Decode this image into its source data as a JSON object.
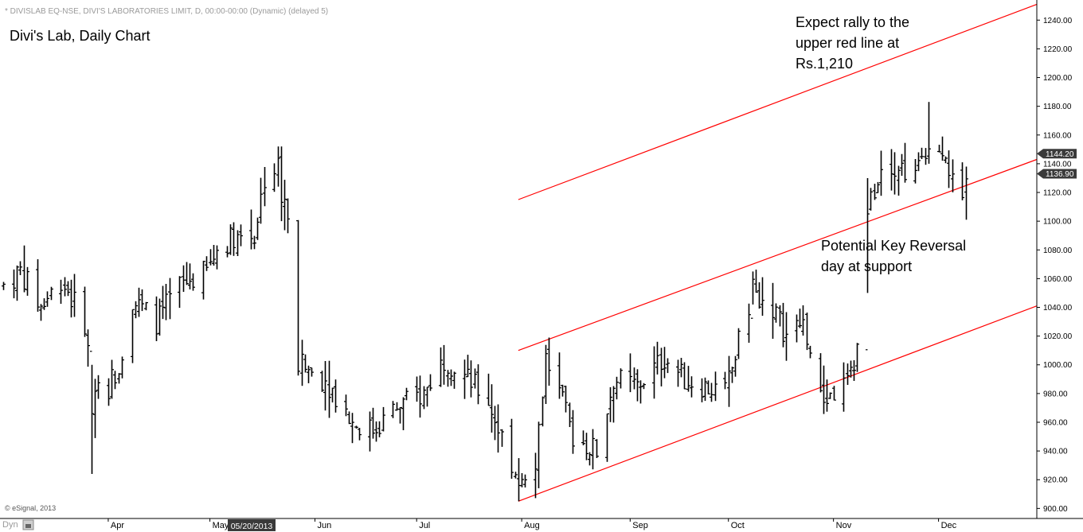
{
  "header": {
    "symbol_line": "* DIVISLAB EQ-NSE, DIVI'S LABORATORIES LIMIT, D, 00:00-00:00 (Dynamic) (delayed 5)",
    "chart_title": "Divi's Lab, Daily Chart"
  },
  "footer": {
    "copyright": "© eSignal, 2013",
    "dyn_label": "Dyn",
    "cursor_date": "05/20/2013"
  },
  "annotations": {
    "rally_lines": [
      "Expect rally to the",
      "upper red line at",
      "Rs.1,210"
    ],
    "reversal_lines": [
      "Potential Key Reversal",
      "day at support"
    ]
  },
  "colors": {
    "price_bars": "#000000",
    "trend_lines": "#ff0000",
    "axis_line": "#000000",
    "badge_bg": "#3a3a3a",
    "badge_text": "#ffffff"
  },
  "chart_data": {
    "type": "ohlc",
    "x_tick_labels": [
      {
        "label": "Apr",
        "date": "2013-04-01"
      },
      {
        "label": "May",
        "date": "2013-05-01"
      },
      {
        "label": "Jun",
        "date": "2013-06-01"
      },
      {
        "label": "Jul",
        "date": "2013-07-01"
      },
      {
        "label": "Aug",
        "date": "2013-08-01"
      },
      {
        "label": "Sep",
        "date": "2013-09-02"
      },
      {
        "label": "Oct",
        "date": "2013-10-01"
      },
      {
        "label": "Nov",
        "date": "2013-11-01"
      },
      {
        "label": "Dec",
        "date": "2013-12-02"
      }
    ],
    "y_ticks": [
      900,
      920,
      940,
      960,
      980,
      1000,
      1020,
      1040,
      1060,
      1080,
      1100,
      1120,
      1140,
      1160,
      1180,
      1200,
      1220,
      1240
    ],
    "y_tick_labels": [
      "900.00",
      "920.00",
      "940.00",
      "960.00",
      "980.00",
      "1000.00",
      "1020.00",
      "1040.00",
      "1060.00",
      "1080.00",
      "1100.00",
      "1120.00",
      "1140.00",
      "1160.00",
      "1180.00",
      "1200.00",
      "1220.00",
      "1240.00"
    ],
    "ylim": [
      893,
      1254
    ],
    "xlim": [
      "2013-03-01",
      "2013-12-31"
    ],
    "price_labels": [
      {
        "label": "1144.20",
        "value": 1144.2
      },
      {
        "label": "1136.90",
        "value": 1136.9
      }
    ],
    "trend_lines": [
      {
        "name": "upper",
        "from": {
          "date": "2013-07-31",
          "price": 1115
        },
        "to": {
          "date": "2013-12-31",
          "price": 1251
        }
      },
      {
        "name": "middle",
        "from": {
          "date": "2013-07-31",
          "price": 1010
        },
        "to": {
          "date": "2013-12-31",
          "price": 1143
        }
      },
      {
        "name": "lower",
        "from": {
          "date": "2013-07-31",
          "price": 905
        },
        "to": {
          "date": "2013-12-31",
          "price": 1041
        }
      }
    ],
    "anchors": [
      {
        "date": "2013-03-01",
        "price": 1055
      },
      {
        "date": "2013-03-06",
        "price": 1065
      },
      {
        "date": "2013-03-12",
        "price": 1040
      },
      {
        "date": "2013-03-18",
        "price": 1060
      },
      {
        "date": "2013-03-25",
        "price": 1030
      },
      {
        "date": "2013-03-27",
        "price": 990
      },
      {
        "date": "2013-04-01",
        "price": 985
      },
      {
        "date": "2013-04-04",
        "price": 1000
      },
      {
        "date": "2013-04-08",
        "price": 1045
      },
      {
        "date": "2013-04-15",
        "price": 1030
      },
      {
        "date": "2013-04-22",
        "price": 1055
      },
      {
        "date": "2013-04-30",
        "price": 1065
      },
      {
        "date": "2013-05-03",
        "price": 1080
      },
      {
        "date": "2013-05-08",
        "price": 1090
      },
      {
        "date": "2013-05-14",
        "price": 1090
      },
      {
        "date": "2013-05-17",
        "price": 1130
      },
      {
        "date": "2013-05-22",
        "price": 1140
      },
      {
        "date": "2013-05-24",
        "price": 1095
      },
      {
        "date": "2013-05-27",
        "price": 1000
      },
      {
        "date": "2013-06-04",
        "price": 990
      },
      {
        "date": "2013-06-12",
        "price": 960
      },
      {
        "date": "2013-06-18",
        "price": 955
      },
      {
        "date": "2013-06-25",
        "price": 970
      },
      {
        "date": "2013-07-03",
        "price": 980
      },
      {
        "date": "2013-07-09",
        "price": 1005
      },
      {
        "date": "2013-07-16",
        "price": 990
      },
      {
        "date": "2013-07-22",
        "price": 975
      },
      {
        "date": "2013-07-26",
        "price": 950
      },
      {
        "date": "2013-07-31",
        "price": 920
      },
      {
        "date": "2013-08-05",
        "price": 935
      },
      {
        "date": "2013-08-08",
        "price": 1005
      },
      {
        "date": "2013-08-12",
        "price": 980
      },
      {
        "date": "2013-08-16",
        "price": 950
      },
      {
        "date": "2013-08-23",
        "price": 940
      },
      {
        "date": "2013-08-28",
        "price": 990
      },
      {
        "date": "2013-09-04",
        "price": 985
      },
      {
        "date": "2013-09-12",
        "price": 1005
      },
      {
        "date": "2013-09-18",
        "price": 990
      },
      {
        "date": "2013-09-24",
        "price": 985
      },
      {
        "date": "2013-09-30",
        "price": 980
      },
      {
        "date": "2013-10-04",
        "price": 1015
      },
      {
        "date": "2013-10-08",
        "price": 1050
      },
      {
        "date": "2013-10-14",
        "price": 1040
      },
      {
        "date": "2013-10-18",
        "price": 1020
      },
      {
        "date": "2013-10-23",
        "price": 1030
      },
      {
        "date": "2013-10-28",
        "price": 975
      },
      {
        "date": "2013-11-01",
        "price": 980
      },
      {
        "date": "2013-11-06",
        "price": 990
      },
      {
        "date": "2013-11-08",
        "price": 1015
      },
      {
        "date": "2013-11-11",
        "price": 1080
      },
      {
        "date": "2013-11-12",
        "price": 1115
      },
      {
        "date": "2013-11-15",
        "price": 1140
      },
      {
        "date": "2013-11-20",
        "price": 1140
      },
      {
        "date": "2013-11-25",
        "price": 1130
      },
      {
        "date": "2013-11-29",
        "price": 1160
      },
      {
        "date": "2013-12-04",
        "price": 1150
      },
      {
        "date": "2013-12-06",
        "price": 1125
      },
      {
        "date": "2013-12-09",
        "price": 1108
      },
      {
        "date": "2013-12-10",
        "price": 1130
      }
    ],
    "extreme_bars": [
      {
        "date": "2013-03-27",
        "high": 1000,
        "low": 924
      },
      {
        "date": "2013-05-22",
        "high": 1152,
        "low": 1100
      },
      {
        "date": "2013-07-31",
        "high": 935,
        "low": 905
      },
      {
        "date": "2013-10-08",
        "high": 1065,
        "low": 1042
      },
      {
        "date": "2013-11-11",
        "high": 1130,
        "low": 1050
      },
      {
        "date": "2013-11-29",
        "high": 1183,
        "low": 1140
      },
      {
        "date": "2013-12-10",
        "high": 1138,
        "low": 1101
      }
    ]
  }
}
